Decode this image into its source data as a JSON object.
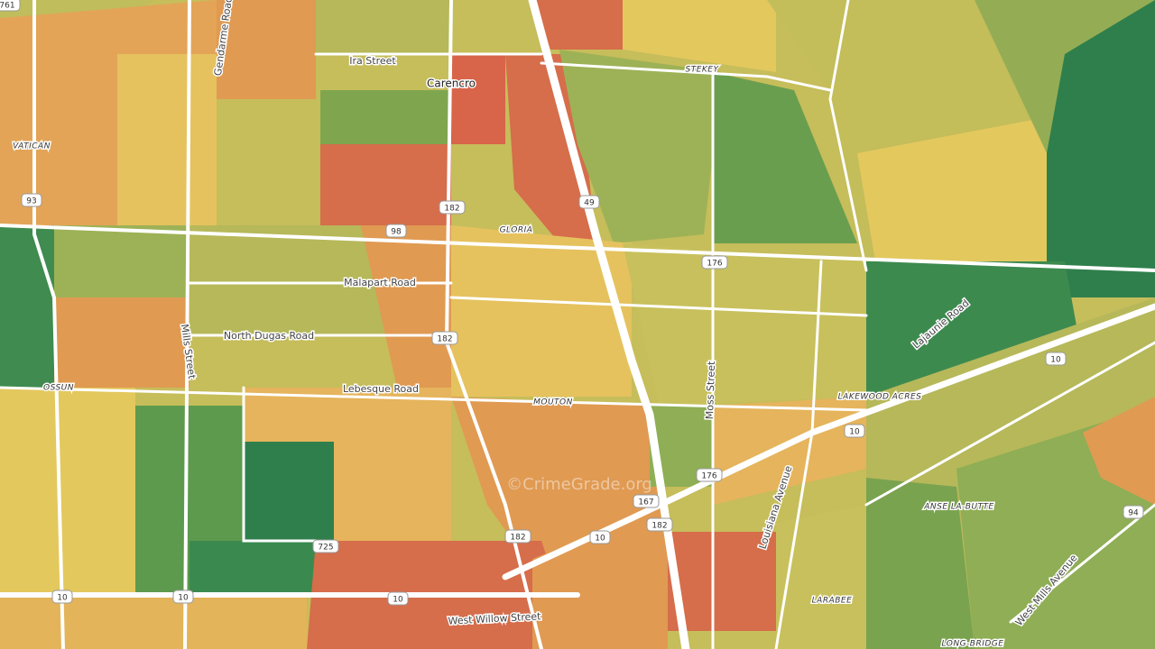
{
  "places": [
    "Carencro",
    "VATICAN",
    "GLORIA",
    "OSSUN",
    "MOUTON",
    "LAKEWOOD ACRES",
    "STEKEY",
    "ANSE LA-BUTTE",
    "LARABEE",
    "LONG-BRIDGE"
  ],
  "roads": [
    "Gendarme Road",
    "Ira Street",
    "Malapart Road",
    "North Dugas Road",
    "Mills Street",
    "Lebesque Road",
    "Moss Street",
    "Lajaunie Road",
    "Louisiana Avenue",
    "West Mills Avenue",
    "West Willow Street"
  ],
  "shields": [
    "761",
    "93",
    "182",
    "98",
    "49",
    "176",
    "182",
    "10",
    "10",
    "176",
    "167",
    "182",
    "94",
    "725",
    "182",
    "10",
    "10",
    "10",
    "10"
  ],
  "watermark": "©CrimeGrade.org"
}
